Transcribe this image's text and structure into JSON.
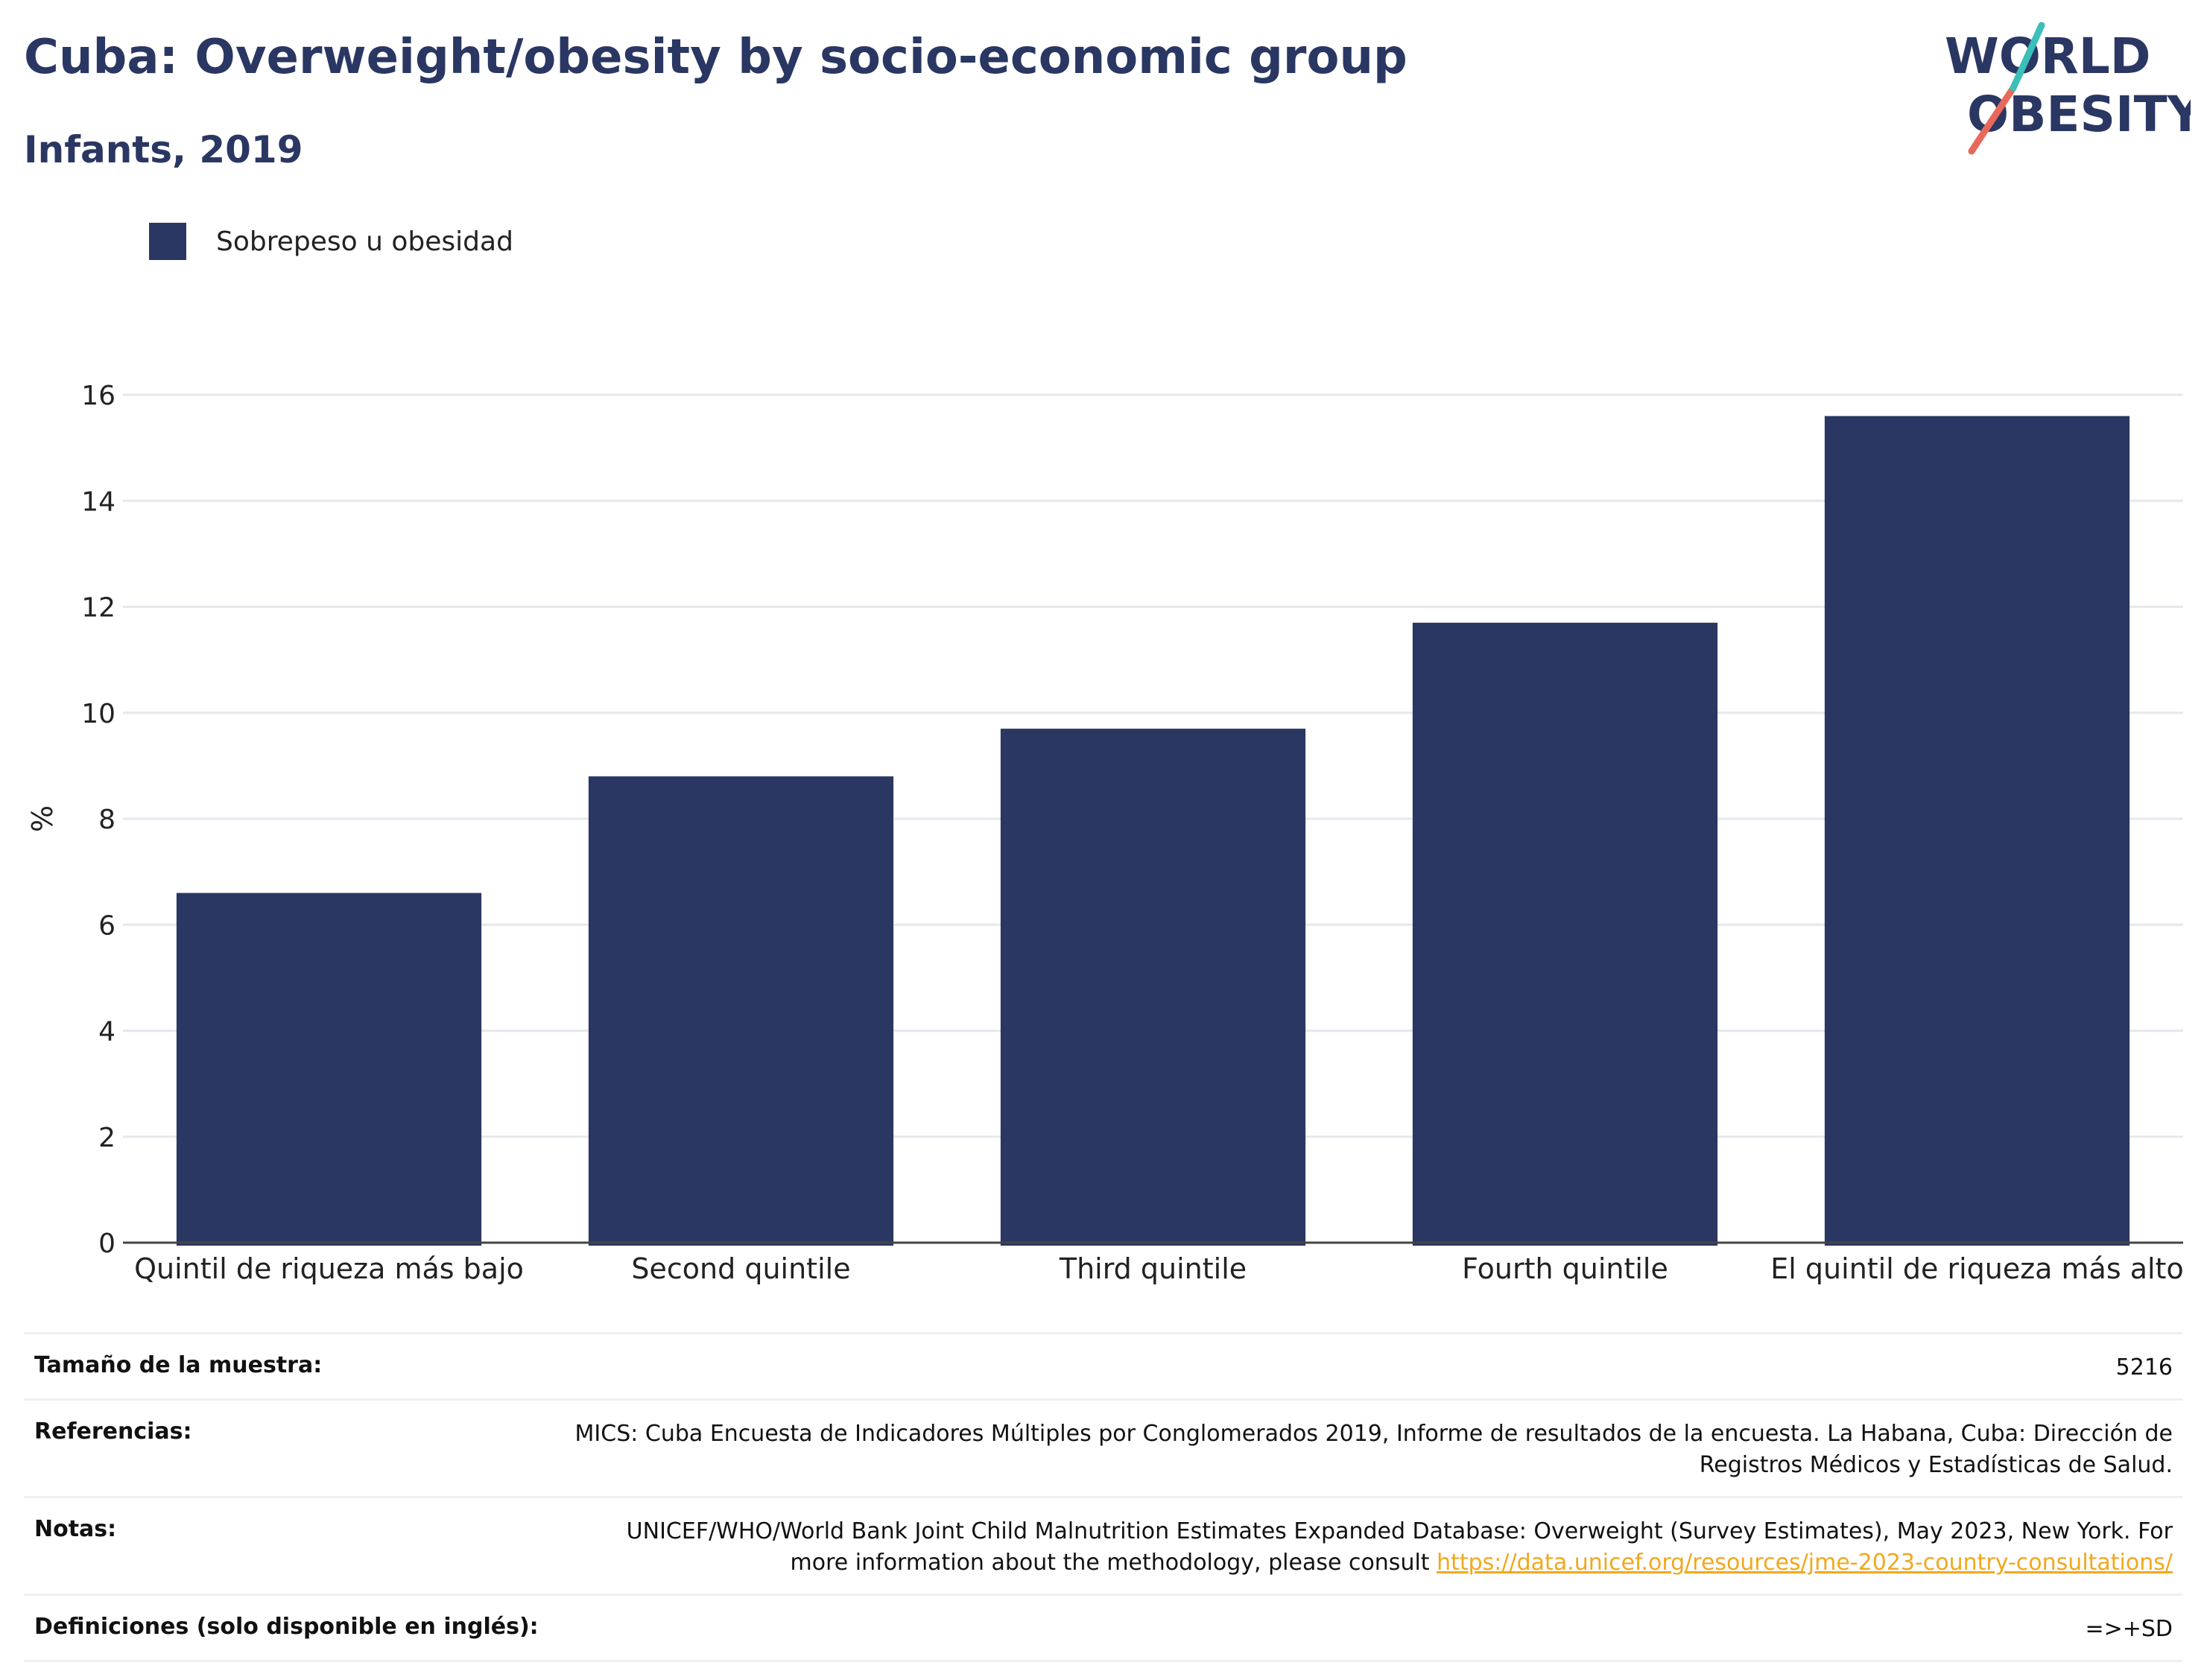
{
  "header": {
    "title": "Cuba: Overweight/obesity by socio-economic group",
    "subtitle": "Infants, 2019"
  },
  "logo": {
    "line1": "WORLD",
    "line2": "OBESITY",
    "colors": [
      "#2a3763",
      "#e8685a",
      "#3bbfb6"
    ]
  },
  "legend": {
    "label": "Sobrepeso u obesidad",
    "color": "#2a3763"
  },
  "chart_data": {
    "type": "bar",
    "categories": [
      "Quintil de riqueza más bajo",
      "Second quintile",
      "Third quintile",
      "Fourth quintile",
      "El quintil de riqueza más alto"
    ],
    "series": [
      {
        "name": "Sobrepeso u obesidad",
        "values": [
          6.6,
          8.8,
          9.7,
          11.7,
          15.6
        ],
        "color": "#2a3763"
      }
    ],
    "ylabel": "%",
    "xlabel": "",
    "ylim": [
      0,
      16
    ],
    "yticks": [
      0,
      2,
      4,
      6,
      8,
      10,
      12,
      14,
      16
    ],
    "grid": true,
    "legend_position": "top-left"
  },
  "info": [
    {
      "label": "Tamaño de la muestra:",
      "value": "5216"
    },
    {
      "label": "Referencias:",
      "value": "MICS: Cuba Encuesta de Indicadores Múltiples por Conglomerados 2019, Informe de resultados de la encuesta. La Habana, Cuba: Dirección de Registros Médicos y Estadísticas de Salud."
    },
    {
      "label": "Notas:",
      "value": "UNICEF/WHO/World Bank Joint Child Malnutrition Estimates Expanded Database: Overweight (Survey Estimates), May 2023, New York. For more information about the methodology, please consult ",
      "link": "https://data.unicef.org/resources/jme-2023-country-consultations/"
    },
    {
      "label": "Definiciones (solo disponible en inglés):",
      "value": "=>+SD"
    }
  ]
}
